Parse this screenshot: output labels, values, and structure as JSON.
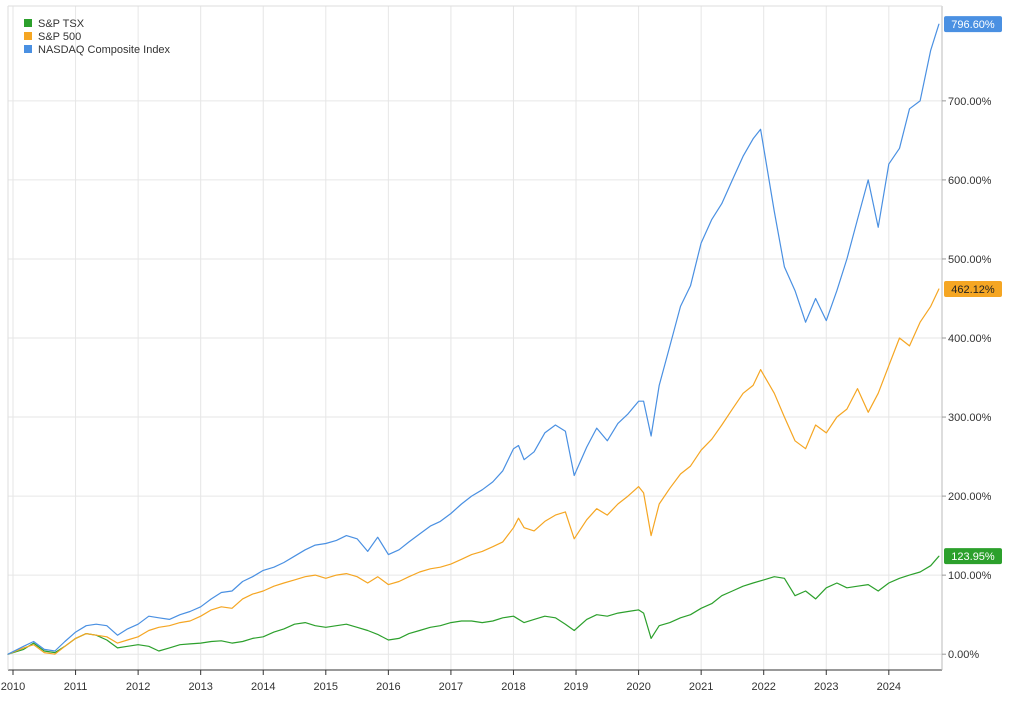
{
  "chart_data": {
    "type": "line",
    "title": "",
    "xlabel": "",
    "ylabel": "",
    "x_range": [
      2009.92,
      2024.85
    ],
    "ylim": [
      -20,
      820
    ],
    "y_ticks": [
      0,
      100,
      200,
      300,
      400,
      500,
      600,
      700
    ],
    "y_tick_labels": [
      "0.00%",
      "100.00%",
      "200.00%",
      "300.00%",
      "400.00%",
      "500.00%",
      "600.00%",
      "700.00%"
    ],
    "x_ticks": [
      2010,
      2011,
      2012,
      2013,
      2014,
      2015,
      2016,
      2017,
      2018,
      2019,
      2020,
      2021,
      2022,
      2023,
      2024
    ],
    "x_tick_labels": [
      "2010",
      "2011",
      "2012",
      "2013",
      "2014",
      "2015",
      "2016",
      "2017",
      "2018",
      "2019",
      "2020",
      "2021",
      "2022",
      "2023",
      "2024"
    ],
    "grid": true,
    "legend_position": "top-left",
    "series": [
      {
        "name": "S&P TSX",
        "color": "#2ca02c",
        "end_label": "123.95%",
        "x": [
          2009.92,
          2010.17,
          2010.33,
          2010.5,
          2010.67,
          2010.83,
          2011.0,
          2011.17,
          2011.33,
          2011.5,
          2011.67,
          2011.83,
          2012.0,
          2012.17,
          2012.33,
          2012.5,
          2012.67,
          2012.83,
          2013.0,
          2013.17,
          2013.33,
          2013.5,
          2013.67,
          2013.83,
          2014.0,
          2014.17,
          2014.33,
          2014.5,
          2014.67,
          2014.83,
          2015.0,
          2015.17,
          2015.33,
          2015.5,
          2015.67,
          2015.83,
          2016.0,
          2016.17,
          2016.33,
          2016.5,
          2016.67,
          2016.83,
          2017.0,
          2017.17,
          2017.33,
          2017.5,
          2017.67,
          2017.83,
          2018.0,
          2018.17,
          2018.33,
          2018.5,
          2018.67,
          2018.83,
          2018.97,
          2019.17,
          2019.33,
          2019.5,
          2019.67,
          2019.83,
          2020.0,
          2020.08,
          2020.2,
          2020.33,
          2020.5,
          2020.67,
          2020.83,
          2021.0,
          2021.17,
          2021.33,
          2021.5,
          2021.67,
          2021.83,
          2022.0,
          2022.17,
          2022.33,
          2022.5,
          2022.67,
          2022.83,
          2023.0,
          2023.17,
          2023.33,
          2023.5,
          2023.67,
          2023.83,
          2024.0,
          2024.17,
          2024.33,
          2024.5,
          2024.67,
          2024.8
        ],
        "values": [
          0,
          6,
          14,
          4,
          2,
          10,
          20,
          26,
          24,
          18,
          8,
          10,
          12,
          10,
          4,
          8,
          12,
          13,
          14,
          16,
          17,
          14,
          16,
          20,
          22,
          28,
          32,
          38,
          40,
          36,
          34,
          36,
          38,
          34,
          30,
          25,
          18,
          20,
          26,
          30,
          34,
          36,
          40,
          42,
          42,
          40,
          42,
          46,
          48,
          40,
          44,
          48,
          46,
          38,
          30,
          44,
          50,
          48,
          52,
          54,
          56,
          52,
          20,
          36,
          40,
          46,
          50,
          58,
          64,
          74,
          80,
          86,
          90,
          94,
          98,
          96,
          74,
          80,
          70,
          84,
          90,
          84,
          86,
          88,
          80,
          90,
          96,
          100,
          104,
          112,
          124
        ]
      },
      {
        "name": "S&P 500",
        "color": "#f5a623",
        "end_label": "462.12%",
        "x": [
          2009.92,
          2010.17,
          2010.33,
          2010.5,
          2010.67,
          2010.83,
          2011.0,
          2011.17,
          2011.33,
          2011.5,
          2011.67,
          2011.83,
          2012.0,
          2012.17,
          2012.33,
          2012.5,
          2012.67,
          2012.83,
          2013.0,
          2013.17,
          2013.33,
          2013.5,
          2013.67,
          2013.83,
          2014.0,
          2014.17,
          2014.33,
          2014.5,
          2014.67,
          2014.83,
          2015.0,
          2015.17,
          2015.33,
          2015.5,
          2015.67,
          2015.83,
          2016.0,
          2016.17,
          2016.33,
          2016.5,
          2016.67,
          2016.83,
          2017.0,
          2017.17,
          2017.33,
          2017.5,
          2017.67,
          2017.83,
          2018.0,
          2018.08,
          2018.17,
          2018.33,
          2018.5,
          2018.67,
          2018.83,
          2018.97,
          2019.17,
          2019.33,
          2019.5,
          2019.67,
          2019.83,
          2020.0,
          2020.08,
          2020.2,
          2020.33,
          2020.5,
          2020.67,
          2020.83,
          2021.0,
          2021.17,
          2021.33,
          2021.5,
          2021.67,
          2021.83,
          2021.95,
          2022.17,
          2022.33,
          2022.5,
          2022.67,
          2022.83,
          2023.0,
          2023.17,
          2023.33,
          2023.5,
          2023.67,
          2023.83,
          2024.0,
          2024.17,
          2024.33,
          2024.5,
          2024.67,
          2024.8
        ],
        "values": [
          0,
          8,
          12,
          2,
          0,
          10,
          20,
          26,
          24,
          22,
          14,
          18,
          22,
          30,
          34,
          36,
          40,
          42,
          48,
          56,
          60,
          58,
          70,
          76,
          80,
          86,
          90,
          94,
          98,
          100,
          96,
          100,
          102,
          98,
          90,
          98,
          88,
          92,
          98,
          104,
          108,
          110,
          114,
          120,
          126,
          130,
          136,
          142,
          160,
          172,
          160,
          156,
          168,
          176,
          180,
          146,
          170,
          184,
          176,
          190,
          200,
          212,
          204,
          150,
          190,
          210,
          228,
          238,
          258,
          272,
          290,
          310,
          330,
          340,
          360,
          330,
          300,
          270,
          260,
          290,
          280,
          300,
          310,
          336,
          306,
          330,
          365,
          400,
          390,
          420,
          440,
          462
        ]
      },
      {
        "name": "NASDAQ Composite Index",
        "color": "#4a90e2",
        "end_label": "796.60%",
        "x": [
          2009.92,
          2010.17,
          2010.33,
          2010.5,
          2010.67,
          2010.83,
          2011.0,
          2011.17,
          2011.33,
          2011.5,
          2011.67,
          2011.83,
          2012.0,
          2012.17,
          2012.33,
          2012.5,
          2012.67,
          2012.83,
          2013.0,
          2013.17,
          2013.33,
          2013.5,
          2013.67,
          2013.83,
          2014.0,
          2014.17,
          2014.33,
          2014.5,
          2014.67,
          2014.83,
          2015.0,
          2015.17,
          2015.33,
          2015.5,
          2015.67,
          2015.83,
          2016.0,
          2016.17,
          2016.33,
          2016.5,
          2016.67,
          2016.83,
          2017.0,
          2017.17,
          2017.33,
          2017.5,
          2017.67,
          2017.83,
          2018.0,
          2018.08,
          2018.17,
          2018.33,
          2018.5,
          2018.67,
          2018.83,
          2018.97,
          2019.17,
          2019.33,
          2019.5,
          2019.67,
          2019.83,
          2020.0,
          2020.08,
          2020.2,
          2020.33,
          2020.5,
          2020.67,
          2020.83,
          2021.0,
          2021.17,
          2021.33,
          2021.5,
          2021.67,
          2021.83,
          2021.95,
          2022.17,
          2022.33,
          2022.5,
          2022.67,
          2022.83,
          2023.0,
          2023.17,
          2023.33,
          2023.5,
          2023.67,
          2023.83,
          2024.0,
          2024.17,
          2024.33,
          2024.5,
          2024.67,
          2024.8
        ],
        "values": [
          0,
          10,
          16,
          6,
          4,
          16,
          28,
          36,
          38,
          36,
          24,
          32,
          38,
          48,
          46,
          44,
          50,
          54,
          60,
          70,
          78,
          80,
          92,
          98,
          106,
          110,
          116,
          124,
          132,
          138,
          140,
          144,
          150,
          146,
          130,
          148,
          126,
          132,
          142,
          152,
          162,
          168,
          178,
          190,
          200,
          208,
          218,
          232,
          260,
          264,
          246,
          256,
          280,
          290,
          282,
          226,
          262,
          286,
          270,
          292,
          304,
          320,
          320,
          276,
          340,
          390,
          440,
          466,
          520,
          550,
          570,
          600,
          630,
          652,
          664,
          560,
          490,
          460,
          420,
          450,
          422,
          460,
          500,
          550,
          600,
          540,
          620,
          640,
          690,
          700,
          764,
          797
        ]
      }
    ]
  }
}
